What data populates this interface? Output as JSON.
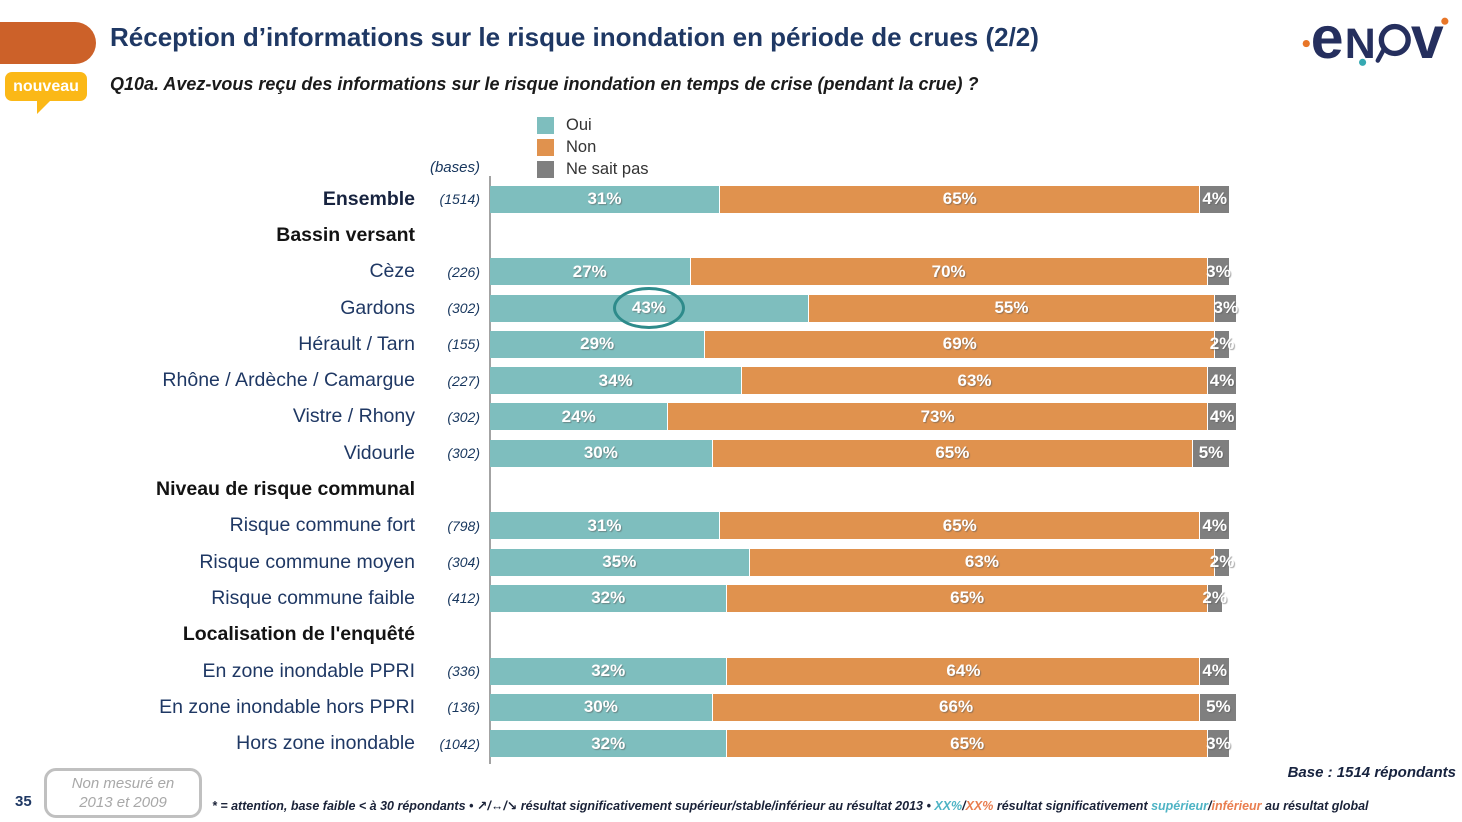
{
  "header": {
    "badge": "nouveau",
    "title": "Réception d’informations sur le risque inondation en période de crues (2/2)",
    "question": "Q10a. Avez-vous reçu des informations sur le risque inondation en temps de crise (pendant la crue) ?",
    "logo_text": "enov"
  },
  "legend": {
    "items": [
      {
        "label": "Oui",
        "color": "#7EBEBE"
      },
      {
        "label": "Non",
        "color": "#E0924E"
      },
      {
        "label": "Ne sait pas",
        "color": "#7F7F7F"
      }
    ]
  },
  "chart_data": {
    "type": "bar",
    "stacked": true,
    "orientation": "horizontal",
    "unit": "%",
    "xlim": [
      0,
      100
    ],
    "bases_header": "(bases)",
    "series_names": [
      "Oui",
      "Non",
      "Ne sait pas"
    ],
    "series_colors": [
      "#7EBEBE",
      "#E0924E",
      "#7F7F7F"
    ],
    "rows": [
      {
        "type": "bar",
        "label": "Ensemble",
        "base": "(1514)",
        "emphasis": true,
        "values": [
          31,
          65,
          4
        ]
      },
      {
        "type": "group",
        "label": "Bassin versant"
      },
      {
        "type": "bar",
        "label": "Cèze",
        "base": "(226)",
        "values": [
          27,
          70,
          3
        ]
      },
      {
        "type": "bar",
        "label": "Gardons",
        "base": "(302)",
        "values": [
          43,
          55,
          3
        ],
        "circled_segment": 0
      },
      {
        "type": "bar",
        "label": "Hérault / Tarn",
        "base": "(155)",
        "values": [
          29,
          69,
          2
        ]
      },
      {
        "type": "bar",
        "label": "Rhône / Ardèche / Camargue",
        "base": "(227)",
        "values": [
          34,
          63,
          4
        ]
      },
      {
        "type": "bar",
        "label": "Vistre / Rhony",
        "base": "(302)",
        "values": [
          24,
          73,
          4
        ]
      },
      {
        "type": "bar",
        "label": "Vidourle",
        "base": "(302)",
        "values": [
          30,
          65,
          5
        ]
      },
      {
        "type": "group",
        "label": "Niveau de risque communal"
      },
      {
        "type": "bar",
        "label": "Risque commune fort",
        "base": "(798)",
        "values": [
          31,
          65,
          4
        ]
      },
      {
        "type": "bar",
        "label": "Risque commune moyen",
        "base": "(304)",
        "values": [
          35,
          63,
          2
        ]
      },
      {
        "type": "bar",
        "label": "Risque commune faible",
        "base": "(412)",
        "values": [
          32,
          65,
          2
        ]
      },
      {
        "type": "group",
        "label": "Localisation de l'enquêté"
      },
      {
        "type": "bar",
        "label": "En zone inondable PPRI",
        "base": "(336)",
        "values": [
          32,
          64,
          4
        ]
      },
      {
        "type": "bar",
        "label": "En zone inondable hors PPRI",
        "base": "(136)",
        "values": [
          30,
          66,
          5
        ]
      },
      {
        "type": "bar",
        "label": "Hors zone inondable",
        "base": "(1042)",
        "values": [
          32,
          65,
          3
        ]
      }
    ],
    "annotations": [
      {
        "row_label": "Gardons",
        "series": "Oui",
        "value_highlighted": "43%",
        "shape": "ellipse",
        "color": "#2E8B8B"
      }
    ]
  },
  "footer": {
    "page_number": "35",
    "not_measured_line1": "Non mesuré en",
    "not_measured_line2": "2013 et 2009",
    "base_note": "Base : 1514 répondants",
    "footnote_parts": [
      {
        "text": "* = attention, base faible < à 30 répondants • ",
        "color": "#1A2238"
      },
      {
        "text": "↗/↔/↘ ",
        "color": "#1A2238"
      },
      {
        "text": "résultat significativement supérieur/stable/inférieur au résultat 2013 • ",
        "color": "#1A2238"
      },
      {
        "text": "XX%",
        "color": "#4FB4C5"
      },
      {
        "text": "/",
        "color": "#1A2238"
      },
      {
        "text": "XX%",
        "color": "#E97E50"
      },
      {
        "text": " résultat significativement ",
        "color": "#1A2238"
      },
      {
        "text": "supérieur",
        "color": "#4FB4C5"
      },
      {
        "text": "/",
        "color": "#1A2238"
      },
      {
        "text": "inférieur",
        "color": "#E97E50"
      },
      {
        "text": " au résultat global",
        "color": "#1A2238"
      }
    ]
  },
  "colors": {
    "header_shape": "#CC6129",
    "badge": "#FBB817",
    "title_text": "#1F3864",
    "oui": "#7EBEBE",
    "non": "#E0924E",
    "ne_sait_pas": "#7F7F7F",
    "highlight_ellipse": "#2E8B8B"
  }
}
